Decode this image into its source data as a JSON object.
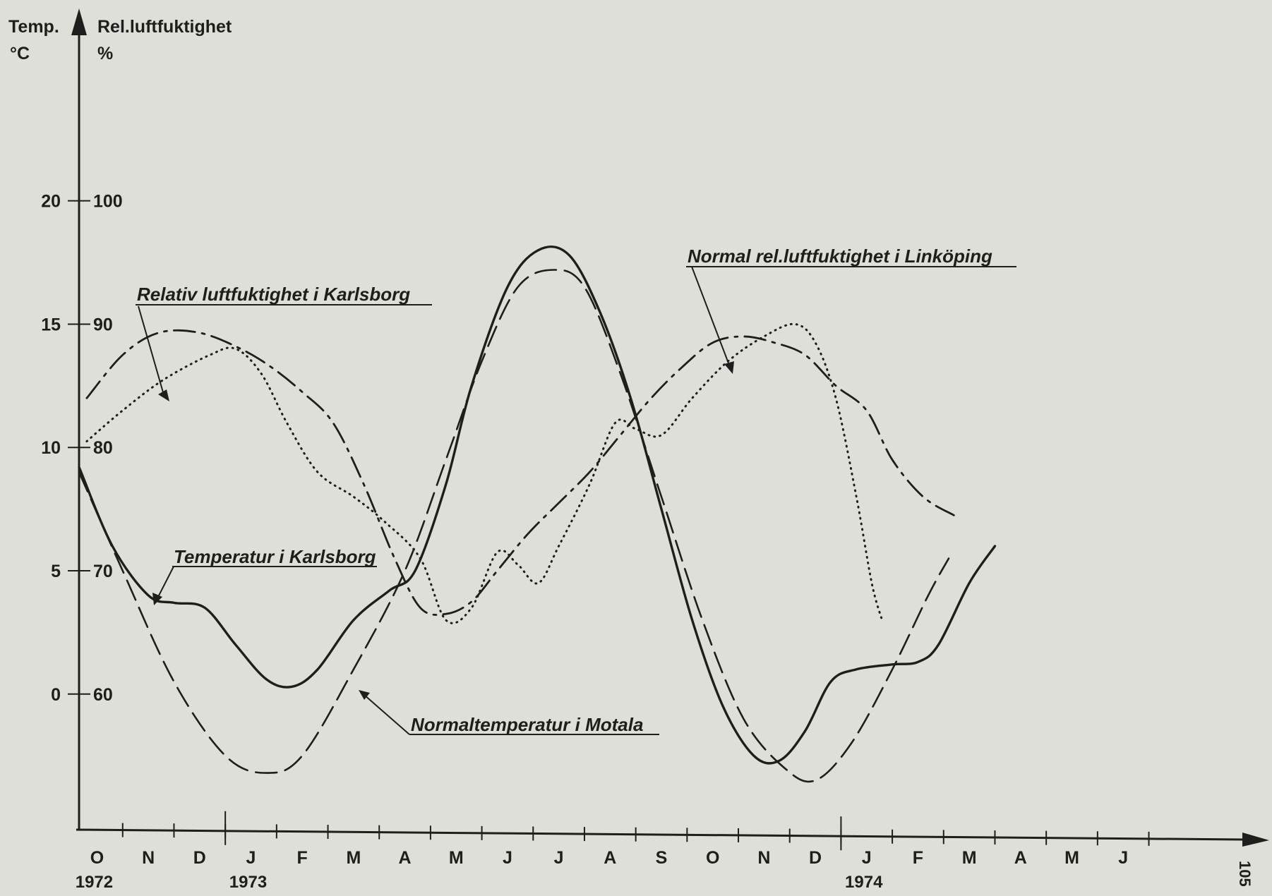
{
  "chart_data": {
    "type": "line",
    "title": "",
    "y_left": {
      "title_line1": "Temp.",
      "title_line2": "°C",
      "ticks": [
        0,
        5,
        10,
        15,
        20
      ],
      "tick_labels": [
        "0",
        "5",
        "10",
        "15",
        "20"
      ],
      "range": [
        -5.5,
        27
      ]
    },
    "y_right": {
      "title_line1": "Rel.luftfuktighet",
      "title_line2": "%",
      "ticks": [
        60,
        70,
        80,
        90,
        100
      ],
      "tick_labels": [
        "60",
        "70",
        "80",
        "90",
        "100"
      ],
      "range": [
        49,
        114
      ]
    },
    "x": {
      "months": [
        "O",
        "N",
        "D",
        "J",
        "F",
        "M",
        "A",
        "M",
        "J",
        "J",
        "A",
        "S",
        "O",
        "N",
        "D",
        "J",
        "F",
        "M",
        "A",
        "M",
        "J"
      ],
      "years": [
        {
          "label": "1972",
          "month_index": 0
        },
        {
          "label": "1973",
          "month_index": 3
        },
        {
          "label": "1974",
          "month_index": 15
        }
      ],
      "year_boundaries": [
        2.5,
        14.5
      ],
      "range": [
        -0.35,
        22.35
      ]
    },
    "series": [
      {
        "name": "Temperatur i Karlsborg",
        "axis": "left",
        "style": "solid",
        "points": [
          [
            -0.35,
            9.2
          ],
          [
            0.3,
            6.0
          ],
          [
            1.0,
            4.0
          ],
          [
            1.5,
            3.7
          ],
          [
            2.1,
            3.5
          ],
          [
            2.7,
            2.0
          ],
          [
            3.3,
            0.6
          ],
          [
            3.8,
            0.3
          ],
          [
            4.3,
            1.0
          ],
          [
            5.0,
            3.0
          ],
          [
            5.7,
            4.2
          ],
          [
            6.2,
            5.0
          ],
          [
            6.8,
            8.5
          ],
          [
            7.3,
            12.5
          ],
          [
            8.0,
            16.5
          ],
          [
            8.6,
            18.0
          ],
          [
            9.2,
            17.8
          ],
          [
            9.8,
            15.5
          ],
          [
            10.4,
            12.0
          ],
          [
            11.0,
            7.5
          ],
          [
            11.6,
            3.0
          ],
          [
            12.2,
            -0.5
          ],
          [
            12.8,
            -2.5
          ],
          [
            13.3,
            -2.7
          ],
          [
            13.8,
            -1.5
          ],
          [
            14.3,
            0.5
          ],
          [
            14.8,
            1.0
          ],
          [
            15.5,
            1.2
          ],
          [
            16.0,
            1.3
          ],
          [
            16.4,
            2.0
          ],
          [
            17.0,
            4.5
          ],
          [
            17.5,
            6.0
          ]
        ]
      },
      {
        "name": "Normaltemperatur i Motala",
        "axis": "left",
        "style": "dashed",
        "points": [
          [
            -0.35,
            9.0
          ],
          [
            0.5,
            5.0
          ],
          [
            1.5,
            0.5
          ],
          [
            2.5,
            -2.5
          ],
          [
            3.3,
            -3.2
          ],
          [
            4.0,
            -2.5
          ],
          [
            5.0,
            1.0
          ],
          [
            6.0,
            5.0
          ],
          [
            6.8,
            9.5
          ],
          [
            7.5,
            13.5
          ],
          [
            8.2,
            16.5
          ],
          [
            8.9,
            17.2
          ],
          [
            9.5,
            16.5
          ],
          [
            10.2,
            13.0
          ],
          [
            11.0,
            8.0
          ],
          [
            11.8,
            3.0
          ],
          [
            12.6,
            -1.0
          ],
          [
            13.4,
            -3.0
          ],
          [
            14.0,
            -3.5
          ],
          [
            14.7,
            -2.0
          ],
          [
            15.5,
            1.0
          ],
          [
            16.2,
            4.0
          ],
          [
            16.6,
            5.5
          ]
        ]
      },
      {
        "name": "Relativ luftfuktighet i Karlsborg",
        "axis": "right",
        "style": "dotted",
        "points": [
          [
            -0.2,
            80.5
          ],
          [
            0.5,
            83.0
          ],
          [
            1.3,
            85.5
          ],
          [
            2.2,
            87.5
          ],
          [
            2.7,
            88.0
          ],
          [
            3.2,
            86.0
          ],
          [
            3.7,
            82.0
          ],
          [
            4.3,
            78.0
          ],
          [
            5.0,
            76.0
          ],
          [
            5.6,
            74.0
          ],
          [
            6.3,
            71.0
          ],
          [
            6.8,
            66.0
          ],
          [
            7.3,
            67.0
          ],
          [
            7.8,
            71.5
          ],
          [
            8.2,
            70.5
          ],
          [
            8.6,
            69.0
          ],
          [
            9.0,
            72.0
          ],
          [
            9.6,
            77.0
          ],
          [
            10.1,
            82.0
          ],
          [
            10.5,
            81.5
          ],
          [
            11.0,
            81.0
          ],
          [
            11.6,
            84.0
          ],
          [
            12.3,
            87.0
          ],
          [
            13.0,
            89.0
          ],
          [
            13.6,
            90.0
          ],
          [
            14.0,
            88.5
          ],
          [
            14.4,
            84.0
          ],
          [
            14.8,
            76.0
          ],
          [
            15.1,
            69.0
          ],
          [
            15.3,
            66.0
          ]
        ]
      },
      {
        "name": "Normal rel.luftfuktighet i Linköping",
        "axis": "right",
        "style": "dashdot",
        "points": [
          [
            -0.2,
            84.0
          ],
          [
            0.5,
            87.5
          ],
          [
            1.2,
            89.3
          ],
          [
            2.0,
            89.3
          ],
          [
            2.8,
            88.0
          ],
          [
            3.4,
            86.5
          ],
          [
            4.0,
            84.5
          ],
          [
            4.6,
            82.0
          ],
          [
            5.2,
            77.0
          ],
          [
            5.8,
            71.0
          ],
          [
            6.3,
            67.0
          ],
          [
            6.8,
            66.5
          ],
          [
            7.3,
            67.5
          ],
          [
            7.8,
            70.0
          ],
          [
            8.4,
            73.0
          ],
          [
            9.0,
            75.5
          ],
          [
            9.6,
            78.0
          ],
          [
            10.2,
            81.0
          ],
          [
            10.8,
            84.0
          ],
          [
            11.4,
            86.5
          ],
          [
            12.0,
            88.5
          ],
          [
            12.6,
            89.0
          ],
          [
            13.2,
            88.5
          ],
          [
            13.8,
            87.5
          ],
          [
            14.4,
            85.0
          ],
          [
            15.0,
            83.0
          ],
          [
            15.5,
            79.0
          ],
          [
            16.1,
            76.0
          ],
          [
            16.7,
            74.5
          ]
        ]
      }
    ],
    "annotations": [
      {
        "text": "Relativ luftfuktighet i Karlsborg",
        "series_index": 2
      },
      {
        "text": "Temperatur i Karlsborg",
        "series_index": 0
      },
      {
        "text": "Normaltemperatur i Motala",
        "series_index": 1
      },
      {
        "text": "Normal rel.luftfuktighet i Linköping",
        "series_index": 3
      }
    ],
    "grid": false,
    "legend": "none"
  },
  "page": {
    "number": "105"
  }
}
